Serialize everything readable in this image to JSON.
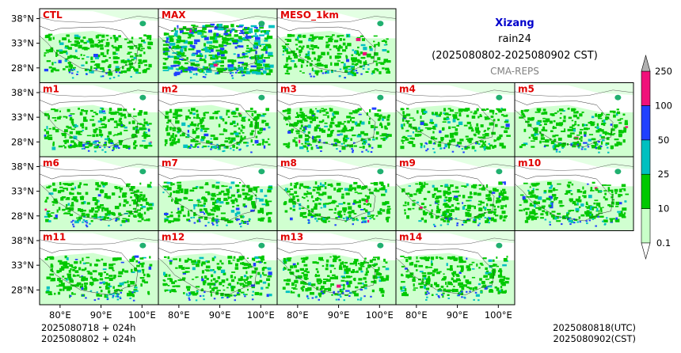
{
  "chart_data": {
    "type": "heatmap",
    "title": "Xizang",
    "subtitle_line1": "rain24",
    "subtitle_line2": "(2025080802-2025080902 CST)",
    "source": "CMA-REPS",
    "panels": [
      "CTL",
      "MAX",
      "MESO_1km",
      "m1",
      "m2",
      "m3",
      "m4",
      "m5",
      "m6",
      "m7",
      "m8",
      "m9",
      "m10",
      "m11",
      "m12",
      "m13",
      "m14"
    ],
    "panel_layout": [
      [
        0,
        0
      ],
      [
        1,
        0
      ],
      [
        2,
        0
      ],
      [
        0,
        1
      ],
      [
        1,
        1
      ],
      [
        2,
        1
      ],
      [
        3,
        1
      ],
      [
        4,
        1
      ],
      [
        0,
        2
      ],
      [
        1,
        2
      ],
      [
        2,
        2
      ],
      [
        3,
        2
      ],
      [
        4,
        2
      ],
      [
        0,
        3
      ],
      [
        1,
        3
      ],
      [
        2,
        3
      ],
      [
        3,
        3
      ]
    ],
    "lat_ticks": [
      "38°N",
      "33°N",
      "28°N"
    ],
    "lat_values": [
      38,
      33,
      28
    ],
    "lon_ticks": [
      "80°E",
      "90°E",
      "100°E"
    ],
    "lon_values": [
      80,
      90,
      100
    ],
    "xlim": [
      75,
      104
    ],
    "ylim": [
      25,
      40
    ],
    "colorbar": {
      "levels": [
        "0.1",
        "10",
        "25",
        "50",
        "100",
        "250"
      ],
      "colors": [
        "#c8ffc8",
        "#00c800",
        "#00c0c0",
        "#2040ff",
        "#f0107a"
      ],
      "extend_colors": {
        "under": "#ffffff",
        "over": "#b0b0b0"
      }
    },
    "footer_left": [
      "2025080718  +  024h",
      "2025080802  +  024h"
    ],
    "footer_right": [
      "2025080818(UTC)",
      "2025080902(CST)"
    ],
    "colors": {
      "title": "#0000cc",
      "panel_label": "#e00000",
      "source": "#808080"
    }
  }
}
